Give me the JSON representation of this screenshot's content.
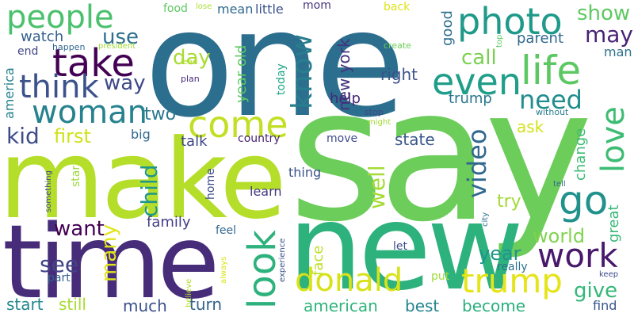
{
  "cloud": {
    "background": "#ffffff",
    "palette": [
      "#440154",
      "#472c7a",
      "#3b518b",
      "#2c718e",
      "#21908d",
      "#27ad81",
      "#5cc863",
      "#aadc32",
      "#fde725"
    ],
    "words": [
      {
        "text": "one",
        "color": "#2c6e8e"
      },
      {
        "text": "say",
        "color": "#6ccd5a"
      },
      {
        "text": "make",
        "color": "#b5de2b"
      },
      {
        "text": "new",
        "color": "#2db27d"
      },
      {
        "text": "time",
        "color": "#472c7a"
      },
      {
        "text": "people",
        "color": "#4ac16d"
      },
      {
        "text": "photo",
        "color": "#1f9a8a"
      },
      {
        "text": "take",
        "color": "#440154"
      },
      {
        "text": "life",
        "color": "#5cc863"
      },
      {
        "text": "even",
        "color": "#1f9e89"
      },
      {
        "text": "think",
        "color": "#3b528b"
      },
      {
        "text": "woman",
        "color": "#26828e"
      },
      {
        "text": "come",
        "color": "#c2df23"
      },
      {
        "text": "look",
        "color": "#2db27d"
      },
      {
        "text": "donald",
        "color": "#d8e219"
      },
      {
        "text": "trump",
        "color": "#e5e419"
      },
      {
        "text": "work",
        "color": "#48186a"
      },
      {
        "text": "love",
        "color": "#3dbc74"
      },
      {
        "text": "go",
        "color": "#21918c"
      },
      {
        "text": "use",
        "color": "#2e6f8e"
      },
      {
        "text": "way",
        "color": "#3e4989"
      },
      {
        "text": "day",
        "color": "#a8db34"
      },
      {
        "text": "know",
        "color": "#287d8e"
      },
      {
        "text": "call",
        "color": "#7ad151"
      },
      {
        "text": "need",
        "color": "#218e8d"
      },
      {
        "text": "may",
        "color": "#482475"
      },
      {
        "text": "show",
        "color": "#5ec962"
      },
      {
        "text": "video",
        "color": "#31688e"
      },
      {
        "text": "kid",
        "color": "#3e4c8a"
      },
      {
        "text": "first",
        "color": "#d0e11c"
      },
      {
        "text": "two",
        "color": "#2a788e"
      },
      {
        "text": "child",
        "color": "#1f968b"
      },
      {
        "text": "want",
        "color": "#440154"
      },
      {
        "text": "see",
        "color": "#414487"
      },
      {
        "text": "many",
        "color": "#e1e51c"
      },
      {
        "text": "year",
        "color": "#1f948c"
      },
      {
        "text": "world",
        "color": "#7fd34e"
      },
      {
        "text": "give",
        "color": "#35b779"
      },
      {
        "text": "american",
        "color": "#2fb47c"
      },
      {
        "text": "start",
        "color": "#24878e"
      },
      {
        "text": "still",
        "color": "#aadc32"
      },
      {
        "text": "much",
        "color": "#3b518b"
      },
      {
        "text": "turn",
        "color": "#33638d"
      },
      {
        "text": "best",
        "color": "#25848e"
      },
      {
        "text": "become",
        "color": "#29af7f"
      },
      {
        "text": "family",
        "color": "#433e85"
      },
      {
        "text": "talk",
        "color": "#3f4788"
      },
      {
        "text": "well",
        "color": "#a5db36"
      },
      {
        "text": "state",
        "color": "#39568c"
      },
      {
        "text": "country",
        "color": "#482576"
      },
      {
        "text": "ask",
        "color": "#d2e21b"
      },
      {
        "text": "change",
        "color": "#3dbc74"
      },
      {
        "text": "great",
        "color": "#38b977"
      },
      {
        "text": "try",
        "color": "#a2da37"
      },
      {
        "text": "right",
        "color": "#3b528b"
      },
      {
        "text": "new york",
        "color": "#46327e"
      },
      {
        "text": "year old",
        "color": "#5ec962"
      },
      {
        "text": "help",
        "color": "#482878"
      },
      {
        "text": "good",
        "color": "#2e6e8e"
      },
      {
        "text": "parent",
        "color": "#31688e"
      },
      {
        "text": "man",
        "color": "#2c728e"
      },
      {
        "text": "watch",
        "color": "#34608d"
      },
      {
        "text": "america",
        "color": "#26828e"
      },
      {
        "text": "end",
        "color": "#404688"
      },
      {
        "text": "happen",
        "color": "#31688e"
      },
      {
        "text": "president",
        "color": "#a2da37"
      },
      {
        "text": "food",
        "color": "#5ec962"
      },
      {
        "text": "lose",
        "color": "#aadc32"
      },
      {
        "text": "mean",
        "color": "#30698e"
      },
      {
        "text": "little",
        "color": "#3b528b"
      },
      {
        "text": "mom",
        "color": "#46337e"
      },
      {
        "text": "back",
        "color": "#dde318"
      },
      {
        "text": "lead",
        "color": "#b5de2b"
      },
      {
        "text": "plan",
        "color": "#472d7b"
      },
      {
        "text": "create",
        "color": "#6ece58"
      },
      {
        "text": "top",
        "color": "#5ec962"
      },
      {
        "text": "today",
        "color": "#21a685"
      },
      {
        "text": "without",
        "color": "#287d8e"
      },
      {
        "text": "stop",
        "color": "#404688"
      },
      {
        "text": "might",
        "color": "#a2da37"
      },
      {
        "text": "trump",
        "color": "#2a768e",
        "key": "trump2"
      },
      {
        "text": "big",
        "color": "#31688e"
      },
      {
        "text": "move",
        "color": "#3e4a89"
      },
      {
        "text": "thing",
        "color": "#3b528b"
      },
      {
        "text": "learn",
        "color": "#453781"
      },
      {
        "text": "home",
        "color": "#3e4c8a"
      },
      {
        "text": "star",
        "color": "#9bd93c"
      },
      {
        "text": "something",
        "color": "#3f4889"
      },
      {
        "text": "tell",
        "color": "#30698e"
      },
      {
        "text": "city",
        "color": "#2c718e"
      },
      {
        "text": "feel",
        "color": "#31688e"
      },
      {
        "text": "face",
        "color": "#bddf26"
      },
      {
        "text": "let",
        "color": "#3e4c8a"
      },
      {
        "text": "put",
        "color": "#9fda3a"
      },
      {
        "text": "really",
        "color": "#2c728e"
      },
      {
        "text": "keep",
        "color": "#3e4c8a"
      },
      {
        "text": "find",
        "color": "#39568c"
      },
      {
        "text": "part",
        "color": "#33638d"
      },
      {
        "text": "believe",
        "color": "#b5de2b"
      },
      {
        "text": "always",
        "color": "#dae319"
      },
      {
        "text": "experience",
        "color": "#3b528b"
      }
    ]
  }
}
